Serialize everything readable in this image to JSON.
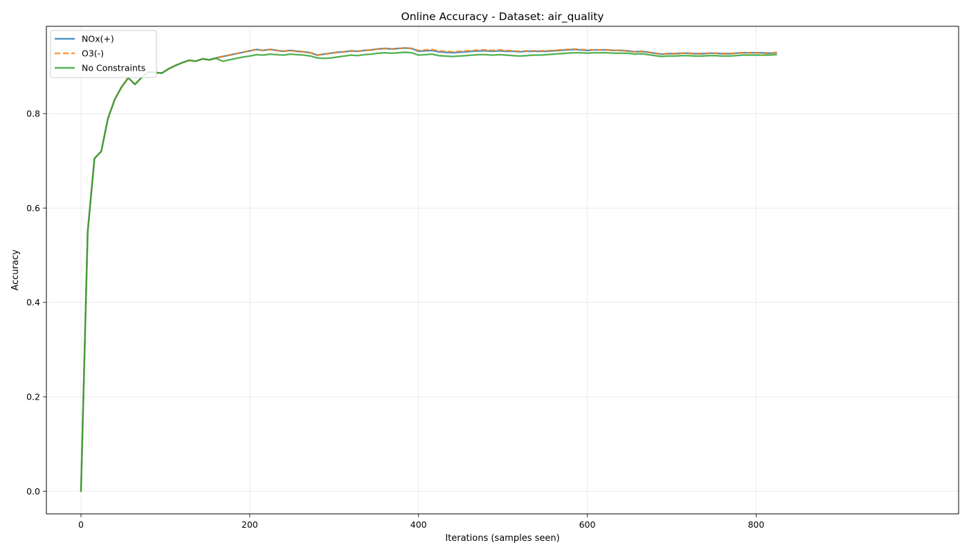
{
  "chart_data": {
    "type": "line",
    "title": "Online Accuracy - Dataset: air_quality",
    "xlabel": "Iterations (samples seen)",
    "ylabel": "Accuracy",
    "xlim": [
      -41,
      1040
    ],
    "ylim": [
      -0.048,
      0.985
    ],
    "xticks": [
      "0",
      "200",
      "400",
      "600",
      "800"
    ],
    "xtick_values": [
      0,
      200,
      400,
      600,
      800
    ],
    "yticks": [
      "0.0",
      "0.2",
      "0.4",
      "0.6",
      "0.8"
    ],
    "ytick_values": [
      0.0,
      0.2,
      0.4,
      0.6,
      0.8
    ],
    "grid": true,
    "legend_position": "top-left",
    "series": [
      {
        "name": "NOx(+)",
        "color": "#1f77b4",
        "style": "solid",
        "x": [
          0,
          8,
          16,
          24,
          32,
          40,
          48,
          56,
          64,
          72,
          80,
          88,
          96,
          104,
          112,
          120,
          128,
          136,
          144,
          152,
          160,
          168,
          176,
          184,
          192,
          200,
          208,
          216,
          224,
          232,
          240,
          248,
          256,
          264,
          272,
          280,
          288,
          296,
          304,
          312,
          320,
          328,
          336,
          344,
          352,
          360,
          368,
          376,
          384,
          392,
          400,
          408,
          416,
          424,
          432,
          440,
          448,
          456,
          464,
          472,
          480,
          488,
          496,
          504,
          512,
          520,
          528,
          536,
          544,
          552,
          560,
          568,
          576,
          584,
          592,
          600,
          608,
          616,
          624,
          632,
          640,
          648,
          656,
          664,
          672,
          680,
          688,
          696,
          704,
          712,
          720,
          728,
          736,
          744,
          752,
          760,
          768,
          776,
          784,
          792,
          800,
          808,
          816,
          824
        ],
        "y": [
          0.0,
          0.55,
          0.705,
          0.72,
          0.79,
          0.83,
          0.856,
          0.876,
          0.862,
          0.877,
          0.888,
          0.887,
          0.886,
          0.895,
          0.902,
          0.908,
          0.913,
          0.911,
          0.916,
          0.914,
          0.918,
          0.921,
          0.924,
          0.927,
          0.93,
          0.933,
          0.936,
          0.934,
          0.936,
          0.934,
          0.932,
          0.934,
          0.932,
          0.931,
          0.929,
          0.924,
          0.926,
          0.928,
          0.93,
          0.931,
          0.933,
          0.932,
          0.934,
          0.935,
          0.937,
          0.938,
          0.937,
          0.938,
          0.939,
          0.938,
          0.932,
          0.933,
          0.934,
          0.931,
          0.93,
          0.929,
          0.93,
          0.931,
          0.932,
          0.933,
          0.933,
          0.932,
          0.933,
          0.932,
          0.932,
          0.931,
          0.932,
          0.932,
          0.932,
          0.932,
          0.933,
          0.934,
          0.935,
          0.936,
          0.935,
          0.934,
          0.935,
          0.935,
          0.935,
          0.934,
          0.934,
          0.933,
          0.931,
          0.932,
          0.93,
          0.928,
          0.926,
          0.927,
          0.927,
          0.928,
          0.928,
          0.927,
          0.927,
          0.928,
          0.928,
          0.927,
          0.927,
          0.928,
          0.929,
          0.929,
          0.929,
          0.929,
          0.928,
          0.929
        ]
      },
      {
        "name": "O3(-)",
        "color": "#ff7f0e",
        "style": "dashed",
        "x": [
          0,
          8,
          16,
          24,
          32,
          40,
          48,
          56,
          64,
          72,
          80,
          88,
          96,
          104,
          112,
          120,
          128,
          136,
          144,
          152,
          160,
          168,
          176,
          184,
          192,
          200,
          208,
          216,
          224,
          232,
          240,
          248,
          256,
          264,
          272,
          280,
          288,
          296,
          304,
          312,
          320,
          328,
          336,
          344,
          352,
          360,
          368,
          376,
          384,
          392,
          400,
          408,
          416,
          424,
          432,
          440,
          448,
          456,
          464,
          472,
          480,
          488,
          496,
          504,
          512,
          520,
          528,
          536,
          544,
          552,
          560,
          568,
          576,
          584,
          592,
          600,
          608,
          616,
          624,
          632,
          640,
          648,
          656,
          664,
          672,
          680,
          688,
          696,
          704,
          712,
          720,
          728,
          736,
          744,
          752,
          760,
          768,
          776,
          784,
          792,
          800,
          808,
          816,
          824
        ],
        "y": [
          0.0,
          0.55,
          0.705,
          0.72,
          0.79,
          0.83,
          0.856,
          0.876,
          0.862,
          0.877,
          0.888,
          0.887,
          0.886,
          0.895,
          0.902,
          0.908,
          0.913,
          0.911,
          0.916,
          0.914,
          0.918,
          0.921,
          0.924,
          0.927,
          0.93,
          0.933,
          0.936,
          0.934,
          0.936,
          0.934,
          0.932,
          0.934,
          0.932,
          0.931,
          0.929,
          0.924,
          0.926,
          0.928,
          0.93,
          0.931,
          0.933,
          0.932,
          0.934,
          0.935,
          0.937,
          0.938,
          0.937,
          0.938,
          0.939,
          0.938,
          0.934,
          0.935,
          0.936,
          0.933,
          0.932,
          0.931,
          0.932,
          0.933,
          0.934,
          0.935,
          0.935,
          0.934,
          0.935,
          0.934,
          0.933,
          0.932,
          0.933,
          0.933,
          0.933,
          0.933,
          0.934,
          0.935,
          0.936,
          0.937,
          0.936,
          0.935,
          0.935,
          0.935,
          0.935,
          0.934,
          0.934,
          0.933,
          0.931,
          0.932,
          0.93,
          0.928,
          0.926,
          0.927,
          0.927,
          0.928,
          0.928,
          0.927,
          0.927,
          0.928,
          0.928,
          0.927,
          0.927,
          0.928,
          0.929,
          0.929,
          0.929,
          0.928,
          0.927,
          0.93
        ]
      },
      {
        "name": "No Constraints",
        "color": "#2ca02c",
        "style": "solid",
        "x": [
          0,
          8,
          16,
          24,
          32,
          40,
          48,
          56,
          64,
          72,
          80,
          88,
          96,
          104,
          112,
          120,
          128,
          136,
          144,
          152,
          160,
          168,
          176,
          184,
          192,
          200,
          208,
          216,
          224,
          232,
          240,
          248,
          256,
          264,
          272,
          280,
          288,
          296,
          304,
          312,
          320,
          328,
          336,
          344,
          352,
          360,
          368,
          376,
          384,
          392,
          400,
          408,
          416,
          424,
          432,
          440,
          448,
          456,
          464,
          472,
          480,
          488,
          496,
          504,
          512,
          520,
          528,
          536,
          544,
          552,
          560,
          568,
          576,
          584,
          592,
          600,
          608,
          616,
          624,
          632,
          640,
          648,
          656,
          664,
          672,
          680,
          688,
          696,
          704,
          712,
          720,
          728,
          736,
          744,
          752,
          760,
          768,
          776,
          784,
          792,
          800,
          808,
          816,
          824
        ],
        "y": [
          0.0,
          0.55,
          0.705,
          0.72,
          0.79,
          0.83,
          0.856,
          0.876,
          0.862,
          0.877,
          0.888,
          0.887,
          0.886,
          0.895,
          0.902,
          0.908,
          0.913,
          0.911,
          0.916,
          0.914,
          0.917,
          0.911,
          0.914,
          0.917,
          0.92,
          0.922,
          0.925,
          0.924,
          0.926,
          0.925,
          0.924,
          0.926,
          0.925,
          0.924,
          0.922,
          0.918,
          0.917,
          0.918,
          0.92,
          0.922,
          0.924,
          0.923,
          0.925,
          0.926,
          0.928,
          0.929,
          0.928,
          0.929,
          0.93,
          0.929,
          0.924,
          0.925,
          0.926,
          0.923,
          0.922,
          0.921,
          0.922,
          0.923,
          0.924,
          0.925,
          0.925,
          0.924,
          0.925,
          0.924,
          0.923,
          0.922,
          0.923,
          0.924,
          0.924,
          0.925,
          0.926,
          0.927,
          0.928,
          0.929,
          0.929,
          0.928,
          0.929,
          0.929,
          0.929,
          0.928,
          0.928,
          0.928,
          0.926,
          0.927,
          0.925,
          0.923,
          0.921,
          0.922,
          0.922,
          0.923,
          0.923,
          0.922,
          0.922,
          0.923,
          0.923,
          0.922,
          0.922,
          0.923,
          0.924,
          0.924,
          0.924,
          0.924,
          0.924,
          0.925
        ]
      }
    ]
  }
}
